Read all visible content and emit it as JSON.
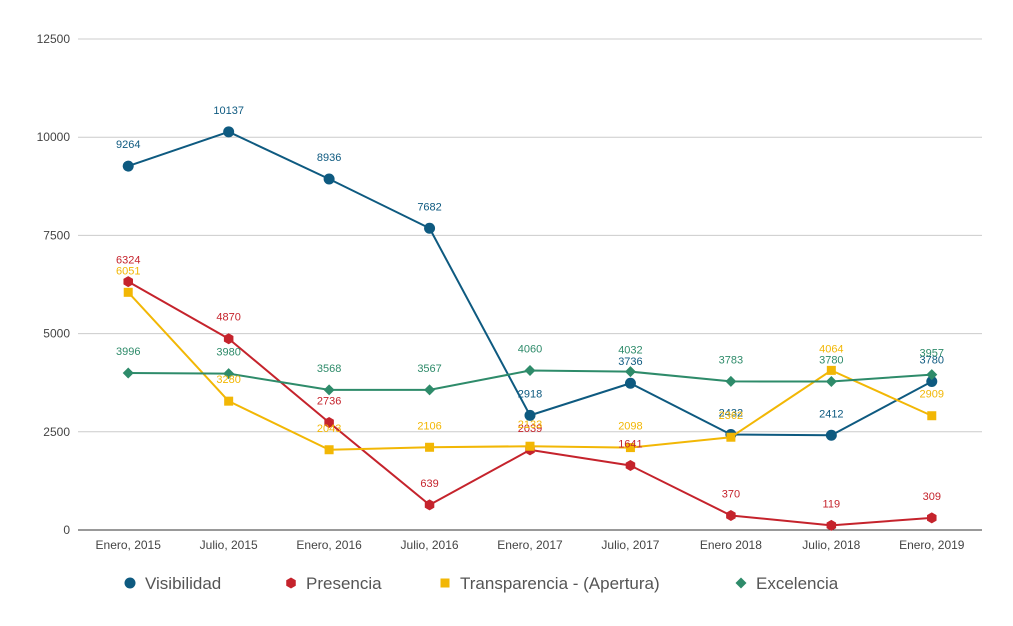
{
  "chart_data": {
    "type": "line",
    "categories": [
      "Enero, 2015",
      "Julio, 2015",
      "Enero, 2016",
      "Julio, 2016",
      "Enero, 2017",
      "Julio, 2017",
      "Enero 2018",
      "Julio, 2018",
      "Enero, 2019"
    ],
    "ylim": [
      0,
      12500
    ],
    "yticks": [
      "0",
      "2500",
      "5000",
      "7500",
      "10000",
      "12500"
    ],
    "grid": true,
    "legend_position": "bottom",
    "series": [
      {
        "name": "Visibilidad",
        "color": "#0e5a80",
        "marker": "circle",
        "values": [
          9264,
          10137,
          8936,
          7682,
          2918,
          3736,
          2432,
          2412,
          3780
        ]
      },
      {
        "name": "Presencia",
        "color": "#c5232c",
        "marker": "hexagon",
        "values": [
          6324,
          4870,
          2736,
          639,
          2039,
          1641,
          370,
          119,
          309
        ]
      },
      {
        "name": "Transparencia - (Apertura)",
        "color": "#f2b705",
        "marker": "square",
        "values": [
          6051,
          3280,
          2043,
          2106,
          2133,
          2098,
          2362,
          4064,
          2909
        ]
      },
      {
        "name": "Excelencia",
        "color": "#2e8b6a",
        "marker": "diamond",
        "values": [
          3996,
          3980,
          3568,
          3567,
          4060,
          4032,
          3783,
          3780,
          3957
        ]
      }
    ]
  }
}
